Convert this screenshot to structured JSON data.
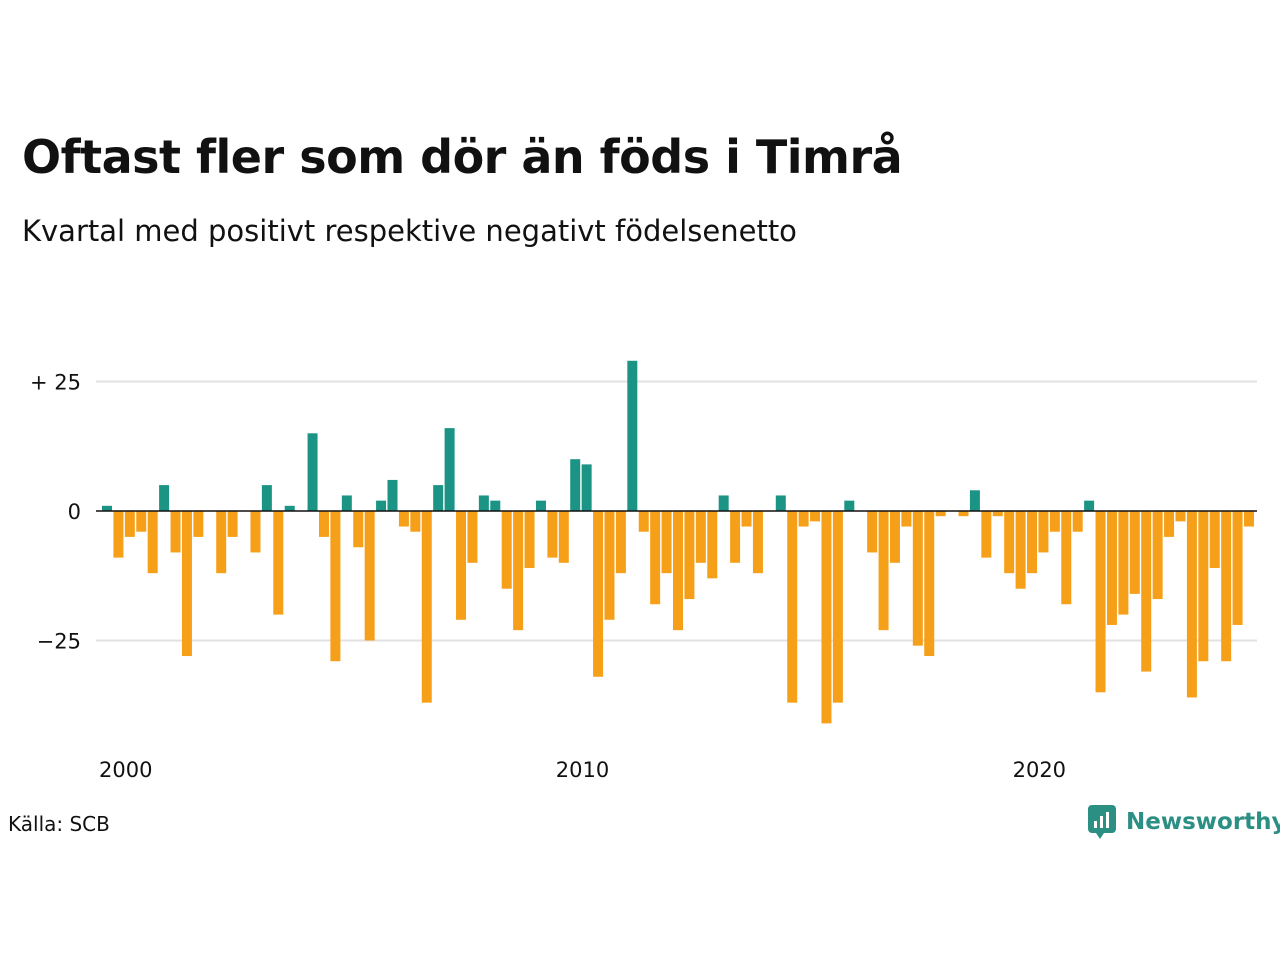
{
  "title": "Oftast fler som dör än föds i Timrå",
  "subtitle": "Kvartal med positivt respektive negativt födelsenetto",
  "source": "Källa: SCB",
  "brand": "Newsworthy",
  "colors": {
    "positive": "#1b9385",
    "negative": "#f6a01a",
    "grid": "#e2e2e2",
    "zero": "#111111",
    "brand": "#2b8f84"
  },
  "chart_data": {
    "type": "bar",
    "title": "Oftast fler som dör än föds i Timrå",
    "subtitle": "Kvartal med positivt respektive negativt födelsenetto",
    "y_ticks": [
      {
        "value": 25,
        "label": "+ 25"
      },
      {
        "value": 0,
        "label": "0"
      },
      {
        "value": -25,
        "label": "−25"
      }
    ],
    "x_ticks": [
      {
        "index": 0,
        "label": "2000"
      },
      {
        "index": 40,
        "label": "2010"
      },
      {
        "index": 80,
        "label": "2020"
      }
    ],
    "ylim": [
      -42,
      30
    ],
    "grid": true,
    "first_quarter": "2000 Q1",
    "values": [
      1,
      -9,
      -5,
      -4,
      -12,
      5,
      -8,
      -28,
      -5,
      0,
      -12,
      -5,
      0,
      -8,
      5,
      -20,
      1,
      0,
      15,
      -5,
      -29,
      3,
      -7,
      -25,
      2,
      6,
      -3,
      -4,
      -37,
      5,
      16,
      -21,
      -10,
      3,
      2,
      -15,
      -23,
      -11,
      2,
      -9,
      -10,
      10,
      9,
      -32,
      -21,
      -12,
      29,
      -4,
      -18,
      -12,
      -23,
      -17,
      -10,
      -13,
      3,
      -10,
      -3,
      -12,
      0,
      3,
      -37,
      -3,
      -2,
      -41,
      -37,
      2,
      0,
      -8,
      -23,
      -10,
      -3,
      -26,
      -28,
      -1,
      0,
      -1,
      4,
      -9,
      -1,
      -12,
      -15,
      -12,
      -8,
      -4,
      -18,
      -4,
      2,
      -35,
      -22,
      -20,
      -16,
      -31,
      -17,
      -5,
      -2,
      -36,
      -29,
      -11,
      -29,
      -22,
      -3
    ]
  }
}
